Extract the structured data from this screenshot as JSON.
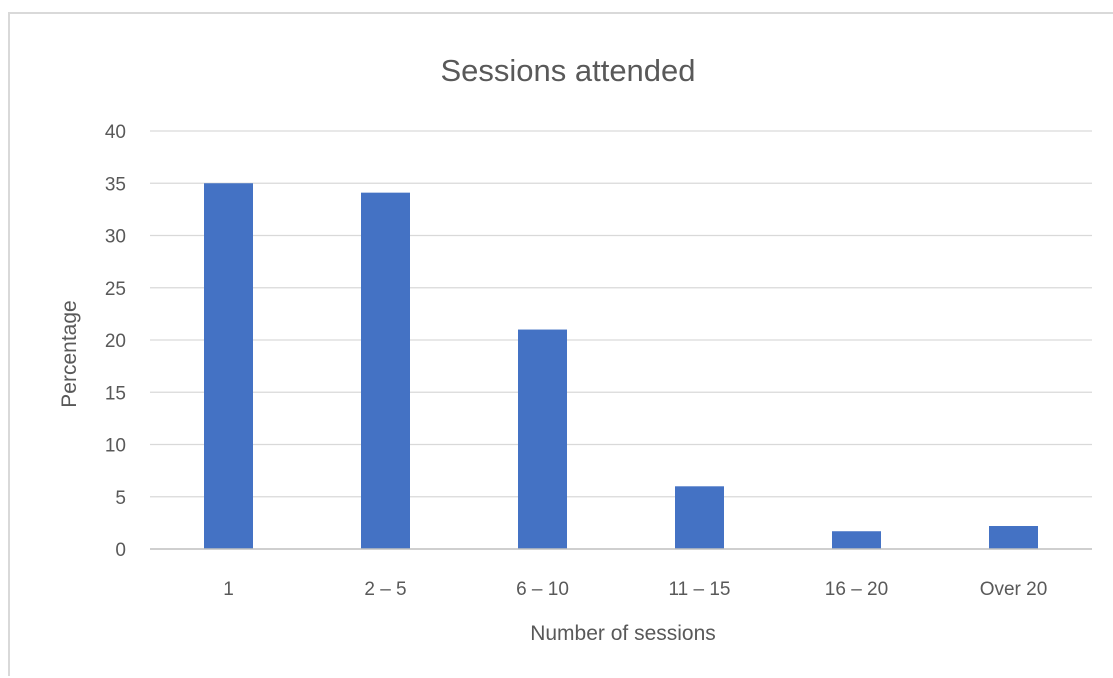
{
  "chart_data": {
    "type": "bar",
    "title": "Sessions attended",
    "xlabel": "Number of sessions",
    "ylabel": "Percentage",
    "categories": [
      "1",
      "2 – 5",
      "6 – 10",
      "11 – 15",
      "16 – 20",
      "Over 20"
    ],
    "series": [
      {
        "values": [
          35,
          34.1,
          21,
          6,
          1.7,
          2.2
        ]
      }
    ],
    "ylim": [
      0,
      40
    ],
    "yticks": [
      "0",
      "5",
      "10",
      "15",
      "20",
      "25",
      "30",
      "35",
      "40"
    ],
    "grid": true,
    "legend": "none",
    "bar_color": "#4472c4",
    "grid_color": "#d9d9d9",
    "text_color": "#595959"
  }
}
